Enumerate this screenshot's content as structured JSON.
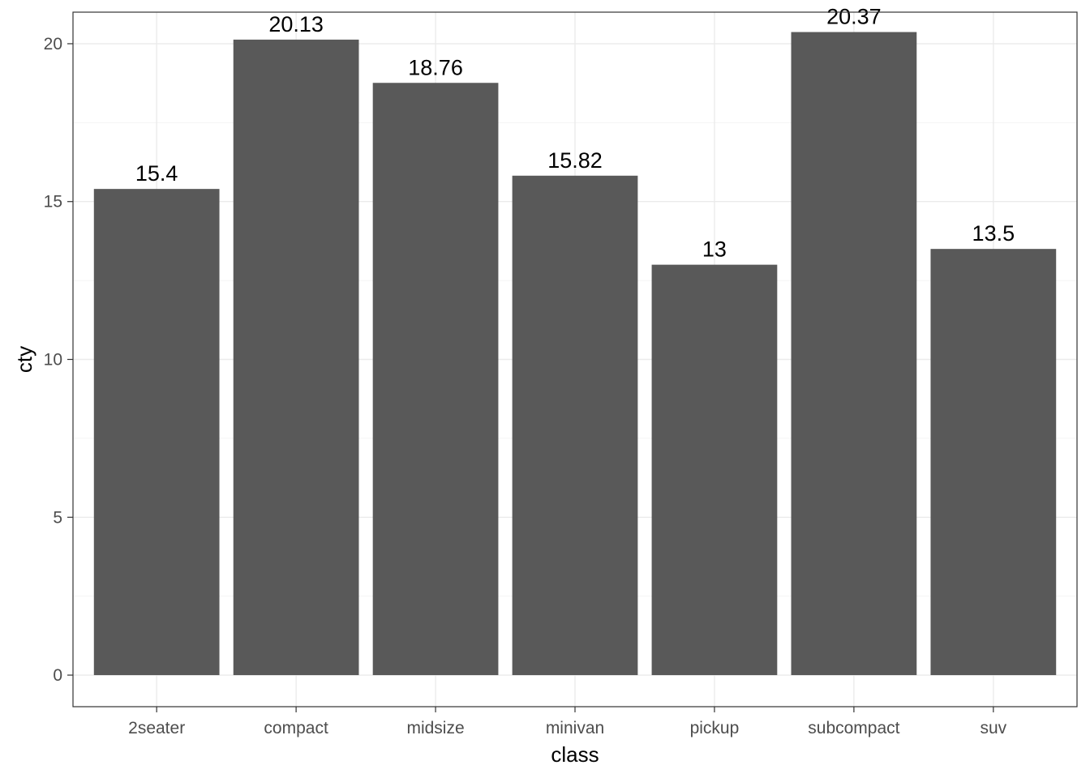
{
  "chart_data": {
    "type": "bar",
    "categories": [
      "2seater",
      "compact",
      "midsize",
      "minivan",
      "pickup",
      "subcompact",
      "suv"
    ],
    "values": [
      15.4,
      20.13,
      18.76,
      15.82,
      13,
      20.37,
      13.5
    ],
    "data_labels": [
      "15.4",
      "20.13",
      "18.76",
      "15.82",
      "13",
      "20.37",
      "13.5"
    ],
    "title": "",
    "xlabel": "class",
    "ylabel": "cty",
    "ylim": [
      -1,
      21
    ],
    "yticks": [
      0,
      5,
      10,
      15,
      20
    ],
    "grid": true,
    "bar_color": "#595959",
    "background": "#ffffff",
    "grid_color": "#ebebeb",
    "border_color": "#333333"
  }
}
